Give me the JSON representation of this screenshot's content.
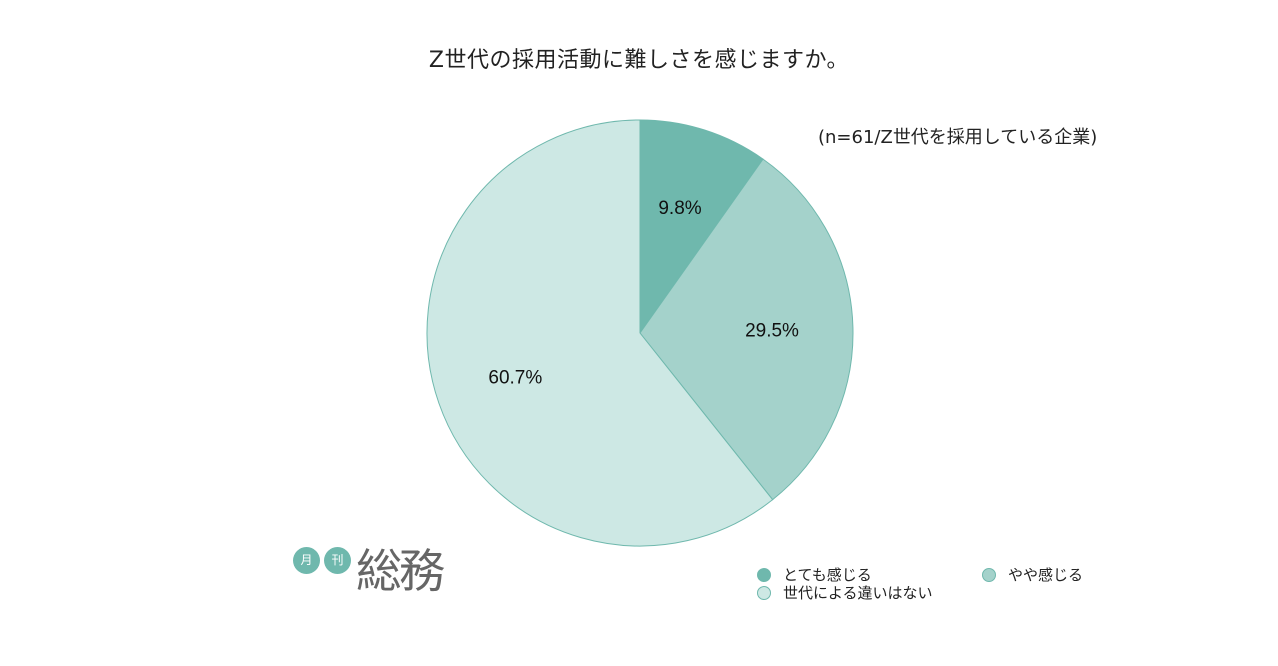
{
  "chart_data": {
    "type": "pie",
    "title": "Z世代の採用活動に難しさを感じますか。",
    "subtitle": "(n=61/Z世代を採用している企業)",
    "slices": [
      {
        "label": "とても感じる",
        "value": 9.8,
        "display": "9.8%",
        "color": "#6fb8ad"
      },
      {
        "label": "やや感じる",
        "value": 29.5,
        "display": "29.5%",
        "color": "#a4d2cb"
      },
      {
        "label": "世代による違いはない",
        "value": 60.7,
        "display": "60.7%",
        "color": "#cde8e4"
      }
    ],
    "legend_position": "bottom-right"
  },
  "logo": {
    "badge_1": "月",
    "badge_2": "刊",
    "brand": "総務"
  },
  "colors": {
    "stroke": "#6fb8ad"
  }
}
